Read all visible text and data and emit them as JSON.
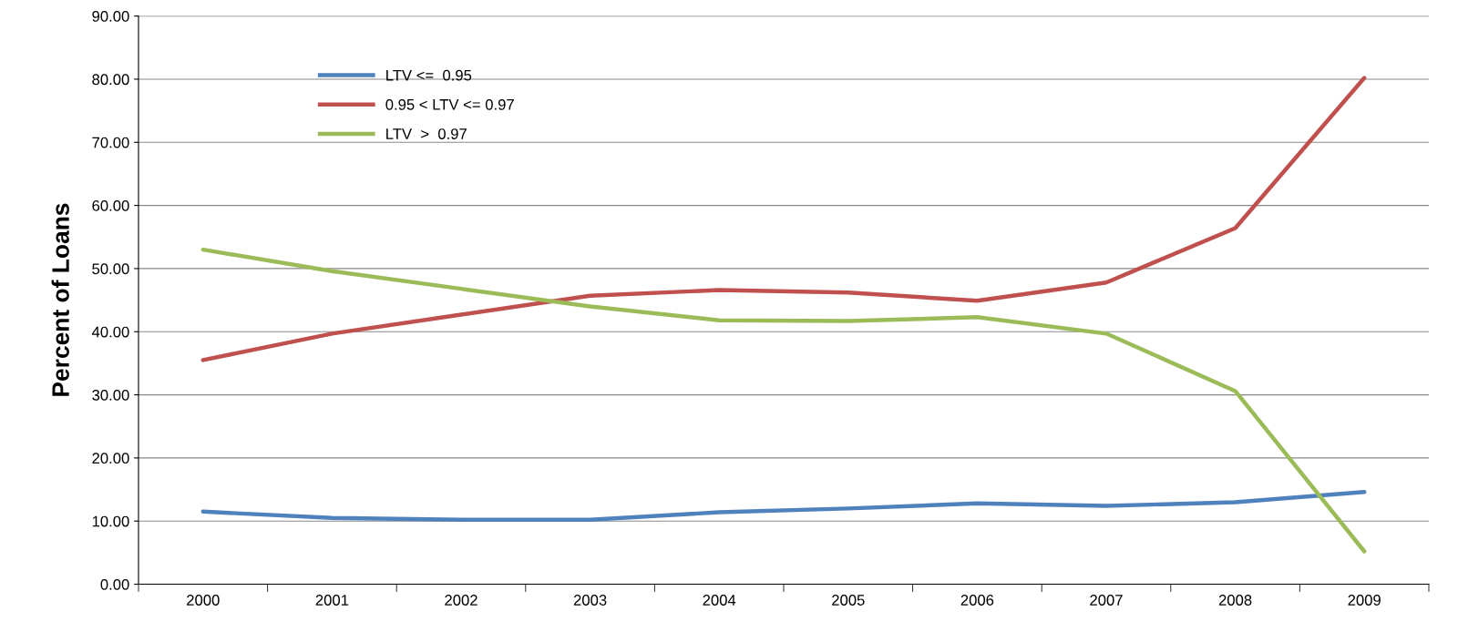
{
  "chart_data": {
    "type": "line",
    "ylabel": "Percent of Loans",
    "categories": [
      "2000",
      "2001",
      "2002",
      "2003",
      "2004",
      "2005",
      "2006",
      "2007",
      "2008",
      "2009"
    ],
    "series": [
      {
        "name": "LTV <=  0.95",
        "color": "#4f81bd",
        "values": [
          11.5,
          10.5,
          10.2,
          10.2,
          11.4,
          12.0,
          12.8,
          12.4,
          13.0,
          14.6
        ]
      },
      {
        "name": "0.95 < LTV <= 0.97",
        "color": "#c0504d",
        "values": [
          35.5,
          39.7,
          42.7,
          45.7,
          46.6,
          46.2,
          44.9,
          47.8,
          56.4,
          80.2
        ]
      },
      {
        "name": "LTV  >  0.97",
        "color": "#9bbb59",
        "values": [
          53.0,
          49.6,
          46.8,
          44.0,
          41.8,
          41.7,
          42.3,
          39.7,
          30.6,
          5.2
        ]
      }
    ],
    "ylim": [
      0,
      90
    ],
    "yticks": [
      {
        "value": 0,
        "label": "0.00"
      },
      {
        "value": 10,
        "label": "10.00"
      },
      {
        "value": 20,
        "label": "20.00"
      },
      {
        "value": 30,
        "label": "30.00"
      },
      {
        "value": 40,
        "label": "40.00"
      },
      {
        "value": 50,
        "label": "50.00"
      },
      {
        "value": 60,
        "label": "60.00"
      },
      {
        "value": 70,
        "label": "70.00"
      },
      {
        "value": 80,
        "label": "80.00"
      },
      {
        "value": 90,
        "label": "90.00"
      }
    ],
    "grid": "y",
    "legend": "top left",
    "marker": "none",
    "line_style": "solid"
  }
}
